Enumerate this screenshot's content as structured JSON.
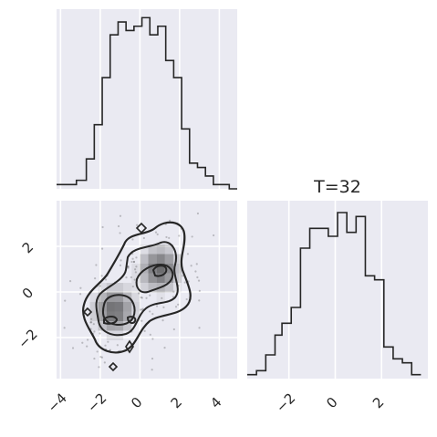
{
  "chart_data": [
    {
      "type": "histogram",
      "panel": "x-marginal",
      "x": [
        -4.2,
        -3.6,
        -3.2,
        -2.7,
        -2.3,
        -1.9,
        -1.5,
        -1.1,
        -0.7,
        -0.3,
        0.1,
        0.5,
        0.9,
        1.3,
        1.7,
        2.1,
        2.5,
        2.9,
        3.3,
        3.7,
        4.1,
        4.5,
        4.9
      ],
      "values": [
        0.01,
        0.01,
        0.02,
        0.07,
        0.15,
        0.26,
        0.36,
        0.39,
        0.37,
        0.38,
        0.4,
        0.36,
        0.38,
        0.3,
        0.26,
        0.14,
        0.06,
        0.05,
        0.03,
        0.01,
        0.01,
        0.0
      ],
      "xlim": [
        -4.2,
        4.9
      ],
      "ylim": [
        0,
        0.42
      ],
      "grid": true
    },
    {
      "type": "histogram",
      "panel": "y-marginal",
      "title": "T=32",
      "x": [
        -3.8,
        -3.4,
        -3.0,
        -2.6,
        -2.3,
        -1.9,
        -1.5,
        -1.1,
        -0.7,
        -0.3,
        0.1,
        0.5,
        0.9,
        1.3,
        1.7,
        2.1,
        2.5,
        2.9,
        3.3,
        3.7
      ],
      "values": [
        0.01,
        0.02,
        0.06,
        0.11,
        0.14,
        0.18,
        0.33,
        0.38,
        0.38,
        0.36,
        0.42,
        0.37,
        0.41,
        0.26,
        0.25,
        0.08,
        0.05,
        0.04,
        0.01
      ],
      "xlim": [
        -3.8,
        4.0
      ],
      "xticks": [
        -2,
        0,
        2
      ],
      "ylim": [
        0,
        0.45
      ],
      "grid": true
    },
    {
      "type": "contour",
      "panel": "joint",
      "xlim": [
        -4.2,
        4.9
      ],
      "ylim": [
        -3.8,
        4.0
      ],
      "xticks": [
        -4,
        -2,
        0,
        2,
        4
      ],
      "yticks": [
        -2,
        0,
        2
      ],
      "levels": 4,
      "modes": [
        {
          "x": -1.3,
          "y": -0.8
        },
        {
          "x": 1.0,
          "y": 1.0
        }
      ],
      "grid": true
    }
  ],
  "style": {
    "panel_bg": "#eaeaf2",
    "grid_color": "#ffffff",
    "line_color": "#262626",
    "tick_color": "#262626"
  }
}
